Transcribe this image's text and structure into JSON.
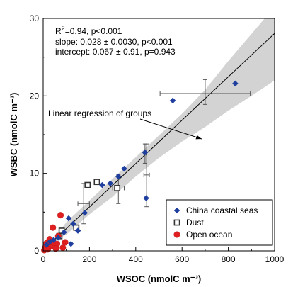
{
  "chart_data": {
    "type": "scatter",
    "title": "",
    "xlabel": "WSOC (nmolC m⁻³)",
    "ylabel": "WSBC (nmolC m⁻³)",
    "xlim": [
      0,
      1000
    ],
    "ylim": [
      0,
      30
    ],
    "xticks": [
      0,
      200,
      400,
      600,
      800,
      1000
    ],
    "yticks": [
      0,
      10,
      20,
      30
    ],
    "grid": false,
    "legend_position": "bottom-right",
    "stats": {
      "r2_prefix": "R",
      "r2_sup": "2",
      "r2_rest": "=0.94, p<0.001",
      "slope": "slope: 0.028 ± 0.0030, p<0.001",
      "intercept": "intercept: 0.067 ± 0.91, p=0.943"
    },
    "annotation": "Linear regression of groups",
    "regression": {
      "slope": 0.028,
      "intercept": 0.067,
      "band_lower": [
        [
          0,
          0.5
        ],
        [
          100,
          2.1
        ],
        [
          200,
          4.7
        ],
        [
          300,
          7.0
        ],
        [
          400,
          9.6
        ],
        [
          500,
          12.0
        ],
        [
          600,
          14.1
        ],
        [
          700,
          16.0
        ],
        [
          800,
          18.1
        ],
        [
          900,
          20.0
        ],
        [
          1000,
          22.0
        ]
      ],
      "band_upper": [
        [
          0,
          -0.3
        ],
        [
          100,
          3.7
        ],
        [
          200,
          6.5
        ],
        [
          300,
          9.3
        ],
        [
          400,
          12.1
        ],
        [
          500,
          14.9
        ],
        [
          600,
          17.7
        ],
        [
          700,
          20.8
        ],
        [
          800,
          24.5
        ],
        [
          900,
          28.0
        ],
        [
          1000,
          31.5
        ]
      ]
    },
    "series": [
      {
        "name": "China coastal seas",
        "marker": "diamond",
        "color": "#1f3f9f",
        "points": [
          [
            830,
            21.6
          ],
          [
            560,
            19.4
          ],
          [
            440,
            12.7
          ],
          [
            445,
            6.8
          ],
          [
            350,
            10.6
          ],
          [
            325,
            9.6
          ],
          [
            290,
            8.7
          ],
          [
            255,
            8.5
          ],
          [
            180,
            4.9
          ],
          [
            150,
            2.6
          ],
          [
            110,
            4.2
          ],
          [
            130,
            3.5
          ],
          [
            90,
            2.4
          ],
          [
            65,
            1.7
          ],
          [
            45,
            1.4
          ],
          [
            30,
            1.2
          ],
          [
            15,
            0.8
          ],
          [
            120,
            0.9
          ]
        ]
      },
      {
        "name": "Dust",
        "marker": "square-open",
        "color": "#333333",
        "points": [
          [
            232,
            8.9
          ],
          [
            192,
            8.5
          ],
          [
            320,
            8.1
          ],
          [
            143,
            3.0
          ],
          [
            80,
            2.6
          ],
          [
            70,
            1.9
          ]
        ]
      },
      {
        "name": "Open ocean",
        "marker": "circle",
        "color": "#e02020",
        "points": [
          [
            75,
            4.6
          ],
          [
            42,
            3.0
          ],
          [
            28,
            1.5
          ],
          [
            95,
            1.1
          ],
          [
            60,
            0.9
          ],
          [
            10,
            0.5
          ],
          [
            35,
            0.6
          ],
          [
            55,
            0.3
          ],
          [
            20,
            0.2
          ],
          [
            5,
            0.1
          ],
          [
            85,
            0.4
          ],
          [
            65,
            1.9
          ],
          [
            40,
            1.1
          ],
          [
            15,
            1.0
          ]
        ]
      }
    ],
    "error_bars": [
      {
        "x": 700,
        "y": 20.3,
        "xlo": 505,
        "xhi": 895,
        "ylo": 18.9,
        "yhi": 22.1
      },
      {
        "x": 440,
        "y": 12.6,
        "xlo": 435,
        "xhi": 445,
        "ylo": 11.3,
        "yhi": 13.8
      },
      {
        "x": 447,
        "y": 9.8,
        "xlo": 435,
        "xhi": 459,
        "ylo": 5.7,
        "yhi": 13.8
      },
      {
        "x": 325,
        "y": 8.1,
        "xlo": 300,
        "xhi": 350,
        "ylo": 6.1,
        "yhi": 9.8
      },
      {
        "x": 175,
        "y": 6.1,
        "xlo": 150,
        "xhi": 200,
        "ylo": 3.5,
        "yhi": 8.7
      }
    ]
  }
}
